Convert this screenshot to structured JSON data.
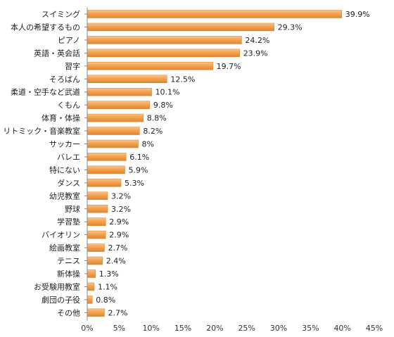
{
  "chart_data": {
    "type": "bar",
    "orientation": "horizontal",
    "title": "",
    "xlabel": "",
    "ylabel": "",
    "categories": [
      "スイミング",
      "本人の希望するもの",
      "ピアノ",
      "英語・英会話",
      "習字",
      "そろばん",
      "柔道・空手など武道",
      "くもん",
      "体育・体操",
      "リトミック・音楽教室",
      "サッカー",
      "バレエ",
      "特にない",
      "ダンス",
      "幼児教室",
      "野球",
      "学習塾",
      "バイオリン",
      "絵画教室",
      "テニス",
      "新体操",
      "お受験用教室",
      "劇団の子役",
      "その他"
    ],
    "values": [
      39.9,
      29.3,
      24.2,
      23.9,
      19.7,
      12.5,
      10.1,
      9.8,
      8.8,
      8.2,
      8,
      6.1,
      5.9,
      5.3,
      3.2,
      3.2,
      2.9,
      2.9,
      2.7,
      2.4,
      1.3,
      1.1,
      0.8,
      2.7
    ],
    "value_labels": [
      "39.9%",
      "29.3%",
      "24.2%",
      "23.9%",
      "19.7%",
      "12.5%",
      "10.1%",
      "9.8%",
      "8.8%",
      "8.2%",
      "8%",
      "6.1%",
      "5.9%",
      "5.3%",
      "3.2%",
      "3.2%",
      "2.9%",
      "2.9%",
      "2.7%",
      "2.4%",
      "1.3%",
      "1.1%",
      "0.8%",
      "2.7%"
    ],
    "xlim": [
      0,
      45
    ],
    "xticks": [
      "0%",
      "5%",
      "10%",
      "15%",
      "20%",
      "25%",
      "30%",
      "35%",
      "40%",
      "45%"
    ],
    "grid": false,
    "legend": "none",
    "bar_color": "#f4a150"
  }
}
